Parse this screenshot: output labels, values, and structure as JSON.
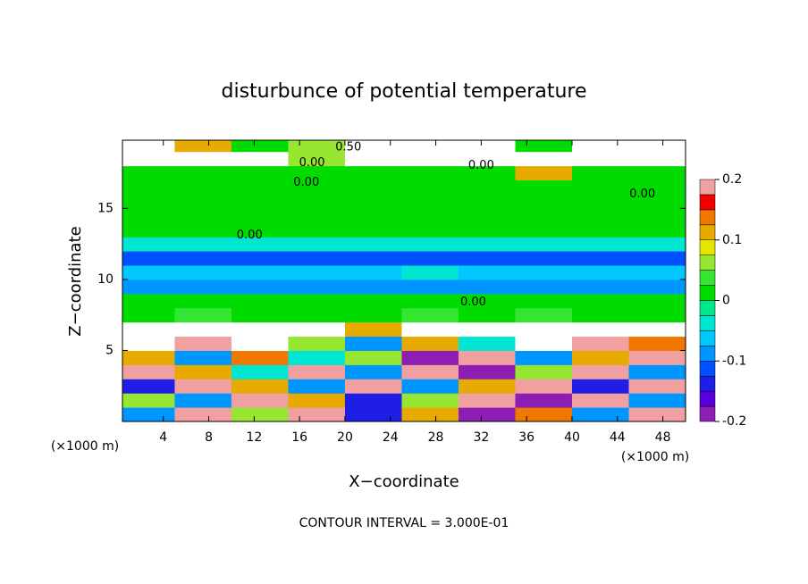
{
  "chart_data": {
    "type": "heatmap",
    "title": "disturbunce of potential temperature",
    "x_label": "X−coordinate",
    "y_label": "Z−coordinate",
    "x_unit": "(×1000 m)",
    "x_unit_right": "(×1000 m)",
    "footnote": "CONTOUR INTERVAL = 3.000E-01",
    "x_bins": [
      0,
      5,
      10,
      15,
      20,
      25,
      30,
      35,
      40,
      45,
      50
    ],
    "z_bins": [
      0,
      1,
      2,
      3,
      4,
      5,
      6,
      7,
      8,
      9,
      10,
      11,
      12,
      13,
      14,
      15,
      16,
      17,
      18,
      19,
      19.8
    ],
    "values": [
      [
        -0.1,
        0.2,
        0.05,
        0.2,
        -0.15,
        0.1,
        -0.2,
        0.15,
        -0.1,
        0.2
      ],
      [
        0.05,
        -0.1,
        0.2,
        0.1,
        -0.15,
        0.05,
        0.2,
        -0.2,
        0.2,
        -0.1
      ],
      [
        -0.15,
        0.2,
        0.1,
        -0.1,
        0.2,
        -0.1,
        0.1,
        0.2,
        -0.15,
        0.2
      ],
      [
        0.2,
        0.1,
        -0.05,
        0.2,
        -0.1,
        0.2,
        -0.2,
        0.05,
        0.2,
        -0.1
      ],
      [
        0.1,
        -0.1,
        0.15,
        -0.05,
        0.05,
        -0.2,
        0.2,
        -0.1,
        0.1,
        0.2
      ],
      [
        0.3,
        0.2,
        0.3,
        0.05,
        -0.1,
        0.1,
        -0.05,
        0.3,
        0.2,
        0.15
      ],
      [
        0.3,
        0.3,
        0.3,
        0.3,
        0.1,
        0.3,
        0.3,
        0.3,
        0.3,
        0.3
      ],
      [
        0.02,
        0.03,
        0.02,
        0.02,
        0.02,
        0.03,
        0.02,
        0.03,
        0.02,
        0.02
      ],
      [
        0.01,
        0.02,
        0.01,
        0.01,
        0.02,
        0.01,
        0.02,
        0.01,
        0.01,
        0.01
      ],
      [
        -0.08,
        -0.08,
        -0.08,
        -0.08,
        -0.08,
        -0.08,
        -0.08,
        -0.08,
        -0.08,
        -0.08
      ],
      [
        -0.06,
        -0.06,
        -0.06,
        -0.06,
        -0.06,
        -0.05,
        -0.06,
        -0.06,
        -0.06,
        -0.06
      ],
      [
        -0.12,
        -0.12,
        -0.12,
        -0.12,
        -0.12,
        -0.11,
        -0.12,
        -0.12,
        -0.12,
        -0.12
      ],
      [
        -0.05,
        -0.05,
        -0.05,
        -0.05,
        -0.05,
        -0.04,
        -0.05,
        -0.05,
        -0.05,
        -0.05
      ],
      [
        0.01,
        0.01,
        0.01,
        0.01,
        0.01,
        0.02,
        0.01,
        0.01,
        0.01,
        0.01
      ],
      [
        0.02,
        0.02,
        0.02,
        0.02,
        0.01,
        0.02,
        0.02,
        0.02,
        0.02,
        0.02
      ],
      [
        0.02,
        0.02,
        0.02,
        0.02,
        0.02,
        0.02,
        0.02,
        0.02,
        0.02,
        0.02
      ],
      [
        0.02,
        0.02,
        0.02,
        0.02,
        0.02,
        0.02,
        0.02,
        0.02,
        0.02,
        0.02
      ],
      [
        0.02,
        0.02,
        0.02,
        0.02,
        0.02,
        0.02,
        0.02,
        0.1,
        0.02,
        0.02
      ],
      [
        0.3,
        0.3,
        0.3,
        0.05,
        0.3,
        0.3,
        0.3,
        0.3,
        0.3,
        0.3
      ],
      [
        0.3,
        0.1,
        0.02,
        0.05,
        0.3,
        0.3,
        0.3,
        0.02,
        0.3,
        0.3
      ]
    ],
    "xlim": [
      0.4,
      50
    ],
    "xticks": [
      4,
      8,
      12,
      16,
      20,
      24,
      28,
      32,
      36,
      40,
      44,
      48
    ],
    "ylim": [
      0,
      19.8
    ],
    "yticks": [
      5,
      10,
      15
    ],
    "clim": [
      -0.2,
      0.2
    ],
    "cticks": [
      -0.2,
      -0.1,
      0,
      0.1,
      0.2
    ],
    "colors": [
      "#8c1eb4",
      "#5a00dc",
      "#1e1ee6",
      "#0050ff",
      "#0096ff",
      "#00c8ff",
      "#00e6d2",
      "#00e68c",
      "#00dc00",
      "#32e632",
      "#96e632",
      "#e6e600",
      "#e6aa00",
      "#f07800",
      "#f00000",
      "#f0a0a0"
    ],
    "over_color": "#ffffff",
    "contour_labels": [
      {
        "text": "0.50",
        "x": 20.3,
        "z": 19.3
      },
      {
        "text": "0.00",
        "x": 17.1,
        "z": 18.2
      },
      {
        "text": "0.00",
        "x": 32,
        "z": 18
      },
      {
        "text": "0.00",
        "x": 16.6,
        "z": 16.8
      },
      {
        "text": "0.00",
        "x": 46.2,
        "z": 16
      },
      {
        "text": "0.00",
        "x": 11.6,
        "z": 13.1
      },
      {
        "text": "0.00",
        "x": 31.3,
        "z": 8.4
      }
    ]
  }
}
